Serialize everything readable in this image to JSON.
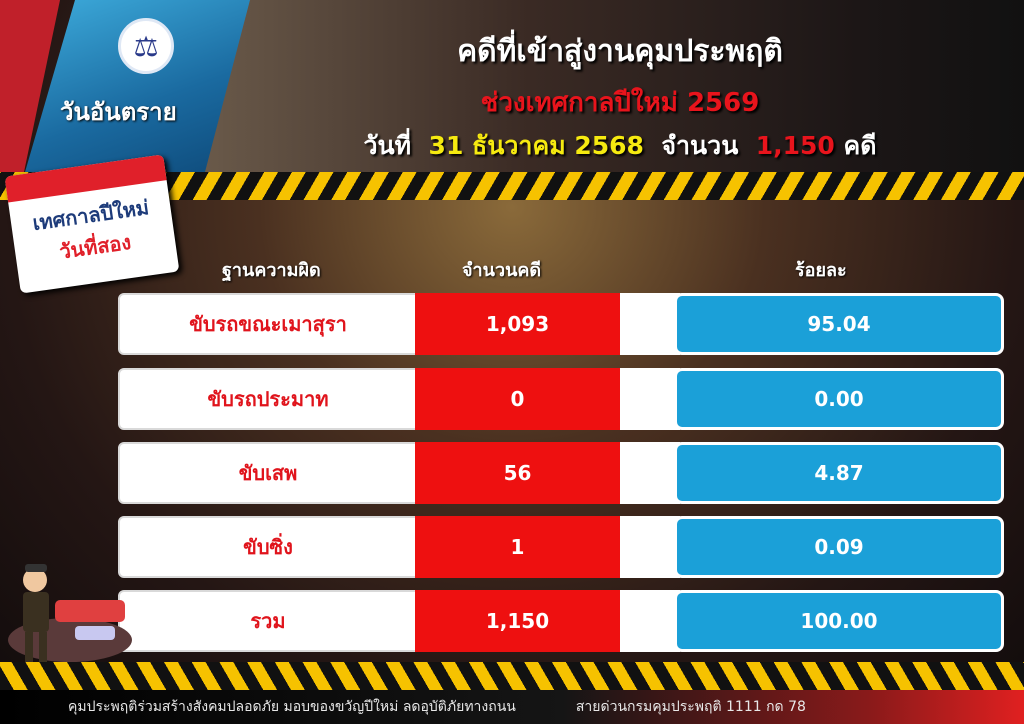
{
  "header": {
    "brand": "วันอันตราย",
    "title": "คดีที่เข้าสู่งานคุมประพฤติ",
    "subtitle": "ช่วงเทศกาลปีใหม่ 2569",
    "date_prefix": "วันที่",
    "date": "31 ธันวาคม 2568",
    "count_prefix": "จำนวน",
    "count": "1,150",
    "count_suffix": "คดี"
  },
  "calendar": {
    "line1": "เทศกาลปีใหม่",
    "line2": "วันที่สอง"
  },
  "table": {
    "headers": [
      "ฐานความผิด",
      "จำนวนคดี",
      "ร้อยละ"
    ],
    "rows": [
      {
        "name": "ขับรถขณะเมาสุรา",
        "count": "1,093",
        "percent": "95.04"
      },
      {
        "name": "ขับรถประมาท",
        "count": "0",
        "percent": "0.00"
      },
      {
        "name": "ขับเสพ",
        "count": "56",
        "percent": "4.87"
      },
      {
        "name": "ขับซิ่ง",
        "count": "1",
        "percent": "0.09"
      },
      {
        "name": "รวม",
        "count": "1,150",
        "percent": "100.00"
      }
    ]
  },
  "footer": {
    "slogan": "คุมประพฤติร่วมสร้างสังคมปลอดภัย มอบของขวัญปีใหม่ ลดอุบัติภัยทางถนน",
    "hotline": "สายด่วนกรมคุมประพฤติ 1111 กด 78"
  },
  "colors": {
    "red": "#ee1010",
    "blue": "#1ba0d8",
    "yellow": "#f6ea10",
    "stripe": "#f6c200"
  }
}
